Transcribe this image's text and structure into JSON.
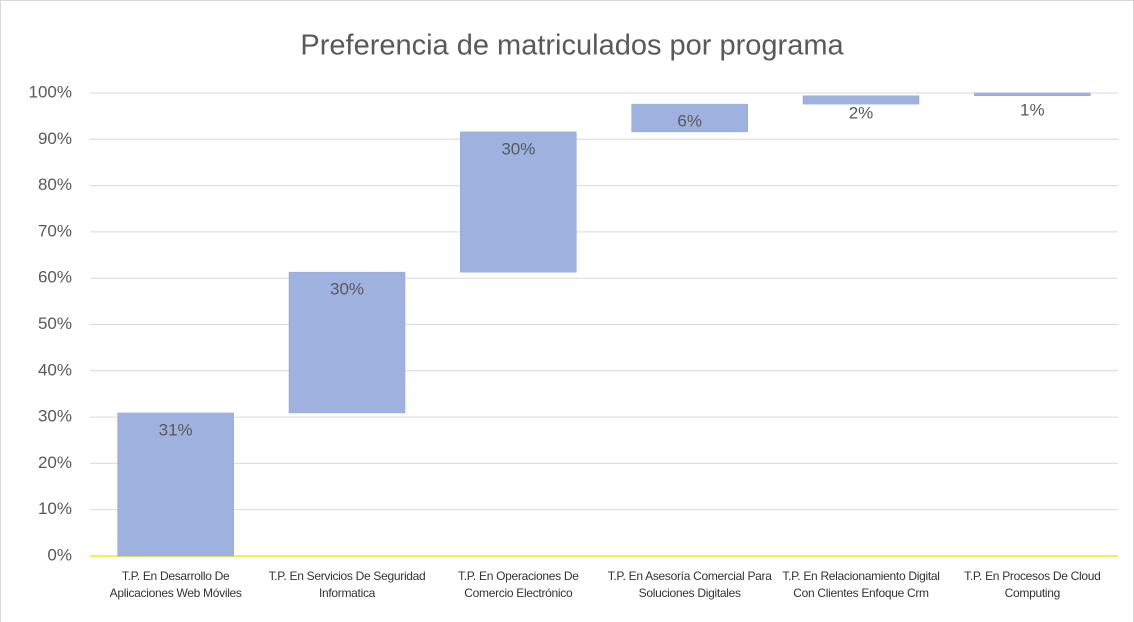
{
  "chart_data": {
    "type": "waterfall",
    "title": "Preferencia de matriculados por programa",
    "categories": [
      "T.P. En Desarrollo De Aplicaciones Web Móviles",
      "T.P. En Servicios De Seguridad Informatica",
      "T.P. En Operaciones De Comercio Electrónico",
      "T.P. En Asesoría Comercial Para Soluciones Digitales",
      "T.P. En Relacionamiento Digital Con Clientes Enfoque Crm",
      "T.P. En Procesos De Cloud Computing"
    ],
    "values": [
      30.9,
      30.4,
      30.3,
      6.0,
      1.8,
      0.6
    ],
    "value_labels": [
      "31%",
      "30%",
      "30%",
      "6%",
      "2%",
      "1%"
    ],
    "color": "#9fb2df",
    "ylim": [
      0,
      100
    ],
    "yticks": [
      {
        "value": 0,
        "label": "0%"
      },
      {
        "value": 10,
        "label": "10%"
      },
      {
        "value": 20,
        "label": "20%"
      },
      {
        "value": 30,
        "label": "30%"
      },
      {
        "value": 40,
        "label": "40%"
      },
      {
        "value": 50,
        "label": "50%"
      },
      {
        "value": 60,
        "label": "60%"
      },
      {
        "value": 70,
        "label": "70%"
      },
      {
        "value": 80,
        "label": "80%"
      },
      {
        "value": 90,
        "label": "90%"
      },
      {
        "value": 100,
        "label": "100%"
      }
    ],
    "grid": true
  }
}
